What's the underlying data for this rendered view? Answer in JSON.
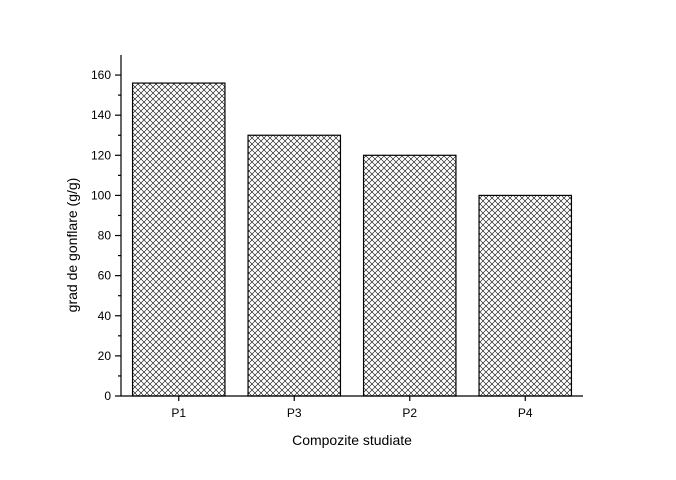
{
  "chart_data": {
    "type": "bar",
    "categories": [
      "P1",
      "P3",
      "P2",
      "P4"
    ],
    "values": [
      156,
      130,
      120,
      100
    ],
    "title": "",
    "xlabel": "Compozite studiate",
    "ylabel": "grad de gonflare (g/g)",
    "ylim": [
      0,
      170
    ],
    "yticks": [
      0,
      20,
      40,
      60,
      80,
      100,
      120,
      140,
      160
    ],
    "bar_fill": "cross-hatch",
    "bar_color": "#000000",
    "grid": false,
    "legend": "none"
  }
}
